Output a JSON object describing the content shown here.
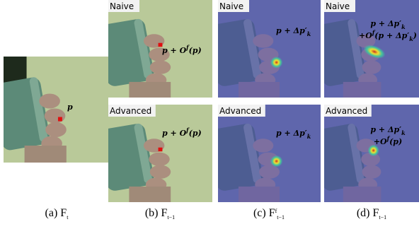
{
  "panels": [
    {
      "caption": [
        {
          "t": "(a) F"
        },
        {
          "sub": "t"
        }
      ],
      "images": [
        {
          "annotation": [
            [
              {
                "t": "p"
              }
            ]
          ]
        }
      ]
    },
    {
      "caption": [
        {
          "t": "(b) F"
        },
        {
          "sub": "t−1"
        }
      ],
      "images": [
        {
          "label": "Naive",
          "annotation": [
            [
              {
                "t": "p + O"
              },
              {
                "sup": "f"
              },
              {
                "t": "(p)"
              }
            ]
          ]
        },
        {
          "label": "Advanced",
          "annotation": [
            [
              {
                "t": "p + O"
              },
              {
                "sup": "f"
              },
              {
                "t": "(p)"
              }
            ]
          ]
        }
      ]
    },
    {
      "caption": [
        {
          "t": "(c) F"
        },
        {
          "sup": "f"
        },
        {
          "sub": "t−1"
        }
      ],
      "images": [
        {
          "label": "Naive",
          "annotation": [
            [
              {
                "t": "p + Δp′"
              },
              {
                "sub": "k"
              }
            ]
          ]
        },
        {
          "label": "Advanced",
          "annotation": [
            [
              {
                "t": "p + Δp′"
              },
              {
                "sub": "k"
              }
            ]
          ]
        }
      ]
    },
    {
      "caption": [
        {
          "t": "(d) F"
        },
        {
          "sub": "t−1"
        }
      ],
      "images": [
        {
          "label": "Naive",
          "annotation": [
            [
              {
                "t": "p + Δp′"
              },
              {
                "sub": "k"
              }
            ],
            [
              {
                "t": "+O"
              },
              {
                "sup": "f"
              },
              {
                "t": "(p + Δp′"
              },
              {
                "sub": "k"
              },
              {
                "t": ")"
              }
            ]
          ]
        },
        {
          "label": "Advanced",
          "annotation": [
            [
              {
                "t": "p + Δp′"
              },
              {
                "sub": "k"
              }
            ],
            [
              {
                "t": "+O"
              },
              {
                "sup": "f"
              },
              {
                "t": "(p)"
              }
            ]
          ]
        }
      ]
    }
  ]
}
